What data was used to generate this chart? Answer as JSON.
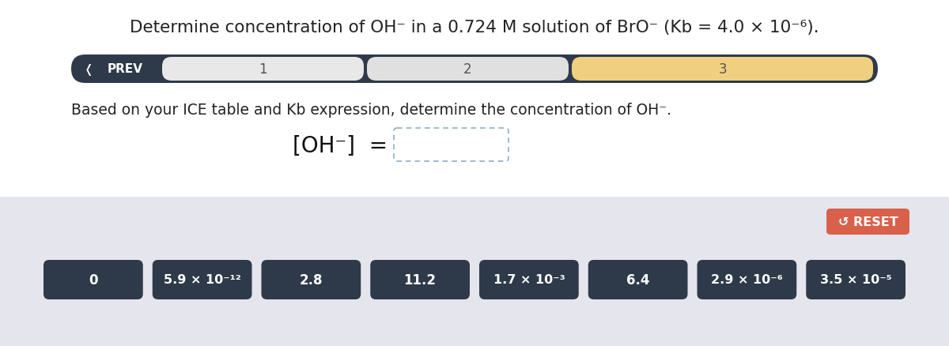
{
  "full_title": "Determine concentration of OH⁻ in a 0.724 M solution of BrO⁻ (Kb = 4.0 × 10⁻⁶).",
  "nav_bg_color": "#2e3a4a",
  "nav_prev_text": "PREV",
  "nav_step1_color": "#e8e8e8",
  "nav_step2_color": "#e0e0e0",
  "nav_step3_color": "#f0d080",
  "question_text": "Based on your ICE table and Kb expression, determine the concentration of OH⁻.",
  "bottom_bg_color": "#e5e5ee",
  "reset_btn_color": "#d9614c",
  "reset_btn_text": "↺ RESET",
  "answer_btn_color": "#2e3a4a",
  "answer_btn_text_color": "#ffffff",
  "bg_color": "#ffffff",
  "answer_labels": [
    "0",
    "5.9 × 10",
    "2.8",
    "11.2",
    "1.7 × 10",
    "6.4",
    "2.9 × 10",
    "3.5 × 10"
  ],
  "answer_exponents": [
    "",
    "⁻¹²",
    "",
    "",
    "⁻³",
    "",
    "⁻⁶",
    "⁻⁵"
  ]
}
